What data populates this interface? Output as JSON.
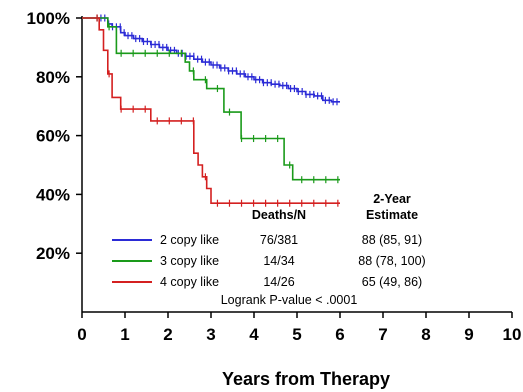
{
  "chart_data": {
    "type": "line",
    "step": true,
    "title": "",
    "xlabel": "Years from Therapy",
    "ylabel": "",
    "xlim": [
      0,
      10
    ],
    "ylim": [
      0,
      100
    ],
    "x_ticks": [
      "0",
      "1",
      "2",
      "3",
      "4",
      "5",
      "6",
      "7",
      "8",
      "9",
      "10"
    ],
    "y_ticks": [
      "20%",
      "40%",
      "60%",
      "80%",
      "100%"
    ],
    "grid": false,
    "legend_placement": "bottom-center",
    "legend_header": {
      "deaths_n": "Deaths/N",
      "estimate_line1": "2-Year",
      "estimate_line2": "Estimate"
    },
    "annotation": "Logrank P-value < .0001",
    "series": [
      {
        "name": "2 copy like",
        "color": "#2b2bd6",
        "deaths_n": "76/381",
        "estimate": "88 (85, 91)",
        "x": [
          0,
          0.5,
          0.6,
          0.7,
          0.9,
          1.0,
          1.2,
          1.4,
          1.6,
          1.8,
          2.0,
          2.2,
          2.4,
          2.6,
          2.8,
          3.0,
          3.2,
          3.4,
          3.6,
          3.8,
          4.0,
          4.2,
          4.4,
          4.6,
          4.8,
          5.0,
          5.2,
          5.4,
          5.6,
          5.8,
          6.0
        ],
        "y": [
          100,
          100,
          98,
          97,
          95,
          94,
          93,
          92,
          91,
          90,
          89,
          88,
          87,
          86,
          85,
          84,
          83,
          82,
          81,
          80,
          79,
          78,
          77.5,
          77,
          76,
          75,
          74,
          73.5,
          72,
          71.5,
          71.5
        ]
      },
      {
        "name": "3 copy like",
        "color": "#1a9a1a",
        "deaths_n": "14/34",
        "estimate": "88 (78, 100)",
        "x": [
          0,
          0.5,
          0.6,
          0.8,
          2.3,
          2.4,
          2.5,
          2.6,
          2.9,
          3.3,
          3.7,
          4.5,
          4.7,
          4.9,
          6.0
        ],
        "y": [
          100,
          100,
          97,
          88,
          88,
          85,
          82,
          79,
          76,
          68,
          59,
          59,
          50,
          45,
          45
        ]
      },
      {
        "name": "4 copy like",
        "color": "#d42020",
        "deaths_n": "14/26",
        "estimate": "65 (49, 86)",
        "x": [
          0,
          0.4,
          0.5,
          0.6,
          0.7,
          0.9,
          1.6,
          2.6,
          2.7,
          2.8,
          2.9,
          3.0,
          6.0
        ],
        "y": [
          100,
          96,
          89,
          81,
          73,
          69,
          65,
          54,
          50,
          46,
          42,
          37,
          37
        ]
      }
    ]
  }
}
